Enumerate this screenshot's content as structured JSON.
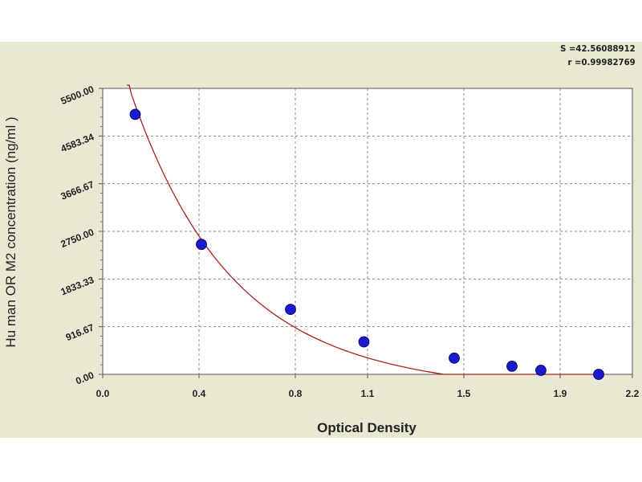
{
  "stats": {
    "s_line": "S =42.56088912",
    "r_line": "r =0.99982769"
  },
  "chart_data": {
    "type": "scatter",
    "xlabel": "Optical Density",
    "ylabel": "Hu man OR M2 concentration (ng/ml )",
    "xlim": [
      0.0,
      2.2
    ],
    "ylim": [
      0,
      5500
    ],
    "x_ticks": [
      0.0,
      0.4,
      0.8,
      1.1,
      1.5,
      1.9,
      2.2
    ],
    "x_tick_labels": [
      "0.0",
      "0.4",
      "0.8",
      "1.1",
      "1.5",
      "1.9",
      "2.2"
    ],
    "y_ticks": [
      0,
      916.67,
      1833.33,
      2750.0,
      3666.67,
      4583.34,
      5500.0
    ],
    "y_tick_labels": [
      "0.00",
      "916.67",
      "1833.33",
      "2750.00",
      "3666.67",
      "4583.34",
      "5500.00"
    ],
    "grid": true,
    "series": [
      {
        "x": [
          0.135,
          0.41,
          0.78,
          1.085,
          1.46,
          1.7,
          1.82,
          2.06
        ],
        "y": [
          5000,
          2500,
          1250,
          625,
          312,
          156,
          78,
          0
        ],
        "color": "#1a1acc"
      }
    ],
    "fit_curve": {
      "color": "#aa2222"
    }
  }
}
